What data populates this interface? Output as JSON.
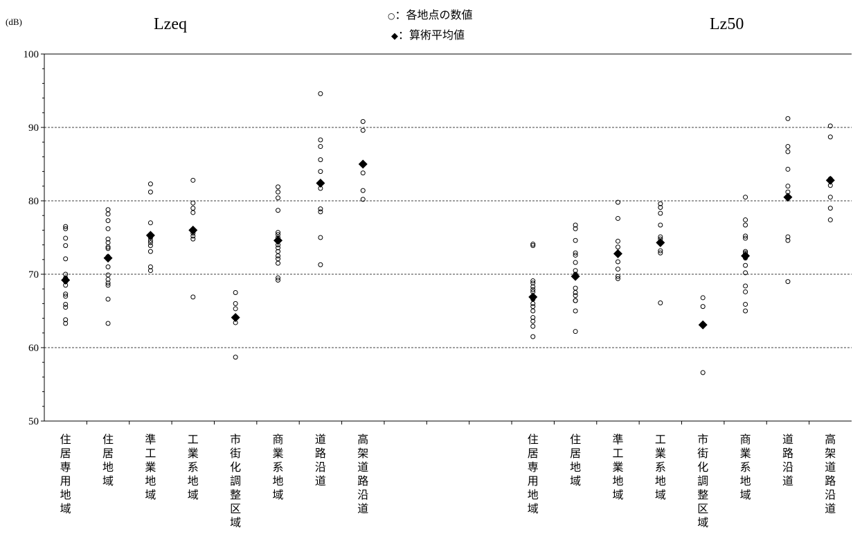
{
  "chart_data": {
    "type": "scatter",
    "unit_label": "(dB)",
    "ylim": [
      50,
      100
    ],
    "yticks": [
      50,
      60,
      70,
      80,
      90,
      100
    ],
    "grid": {
      "y": [
        60,
        70,
        80,
        90
      ],
      "style": "dashed"
    },
    "legend": {
      "placement": "top-center",
      "items": [
        {
          "marker": "○",
          "label": "：各地点の数値"
        },
        {
          "marker": "◆",
          "label": "：算術平均値"
        }
      ]
    },
    "panels": [
      {
        "title": "Lzeq",
        "categories": [
          "住居専用地域",
          "住居地域",
          "準工業地域",
          "工業系地域",
          "市街化調整区域",
          "商業系地域",
          "道路沿道",
          "高架道路沿道"
        ],
        "points": [
          [
            76.5,
            76.2,
            74.9,
            73.9,
            72.1,
            70.0,
            69.5,
            69.0,
            68.5,
            67.3,
            67.0,
            65.9,
            65.5,
            63.8,
            63.3
          ],
          [
            78.8,
            78.2,
            77.3,
            76.2,
            74.8,
            74.3,
            73.7,
            73.5,
            72.4,
            71.0,
            69.9,
            69.3,
            68.8,
            68.5,
            66.6,
            63.3
          ],
          [
            82.3,
            81.2,
            77.0,
            75.0,
            74.6,
            74.3,
            73.9,
            73.1,
            71.0,
            70.5
          ],
          [
            82.8,
            79.7,
            79.0,
            78.4,
            75.6,
            75.2,
            74.8,
            66.9
          ],
          [
            67.5,
            66.0,
            65.3,
            64.1,
            63.4,
            58.7
          ],
          [
            81.9,
            81.2,
            80.4,
            78.7,
            75.7,
            75.4,
            75.0,
            74.5,
            74.0,
            73.6,
            73.1,
            72.5,
            72.1,
            71.5,
            69.5,
            69.2
          ],
          [
            94.6,
            88.3,
            87.4,
            85.6,
            84.0,
            82.3,
            81.7,
            78.9,
            78.5,
            75.0,
            71.3
          ],
          [
            90.8,
            89.6,
            85.1,
            83.8,
            81.4,
            80.2
          ]
        ],
        "means": [
          69.2,
          72.2,
          75.3,
          76.0,
          64.1,
          74.6,
          82.4,
          85.0
        ]
      },
      {
        "title": "Lz50",
        "categories": [
          "住居専用地域",
          "住居地域",
          "準工業地域",
          "工業系地域",
          "市街化調整区域",
          "商業系地域",
          "道路沿道",
          "高架道路沿道"
        ],
        "points": [
          [
            74.1,
            73.9,
            69.1,
            68.8,
            68.3,
            67.9,
            67.6,
            66.6,
            66.0,
            65.6,
            65.0,
            64.1,
            63.6,
            62.9,
            61.5
          ],
          [
            76.7,
            76.2,
            74.6,
            72.9,
            72.6,
            71.6,
            70.5,
            70.0,
            68.1,
            67.5,
            67.1,
            66.4,
            66.4,
            65.0,
            62.2
          ],
          [
            79.8,
            77.6,
            74.5,
            73.7,
            71.7,
            70.7,
            69.7,
            69.4
          ],
          [
            79.6,
            79.1,
            78.3,
            76.7,
            75.1,
            74.8,
            73.2,
            72.9,
            66.1
          ],
          [
            66.8,
            65.6,
            63.2,
            56.6
          ],
          [
            80.5,
            77.4,
            76.7,
            75.2,
            74.9,
            73.1,
            72.9,
            72.2,
            71.2,
            70.2,
            68.4,
            67.6,
            65.9,
            65.0
          ],
          [
            91.2,
            87.4,
            86.7,
            84.3,
            82.0,
            81.2,
            80.5,
            75.1,
            74.6,
            69.0
          ],
          [
            90.2,
            88.7,
            83.0,
            82.1,
            80.5,
            79.0,
            77.4
          ]
        ],
        "means": [
          66.9,
          69.7,
          72.8,
          74.3,
          63.1,
          72.5,
          80.5,
          82.8
        ]
      }
    ]
  },
  "colors": {
    "axis": "#000000",
    "grid": "#000000",
    "marker": "#000000",
    "background": "#ffffff"
  },
  "marker_names": {
    "point": "open-circle",
    "mean": "filled-diamond"
  }
}
